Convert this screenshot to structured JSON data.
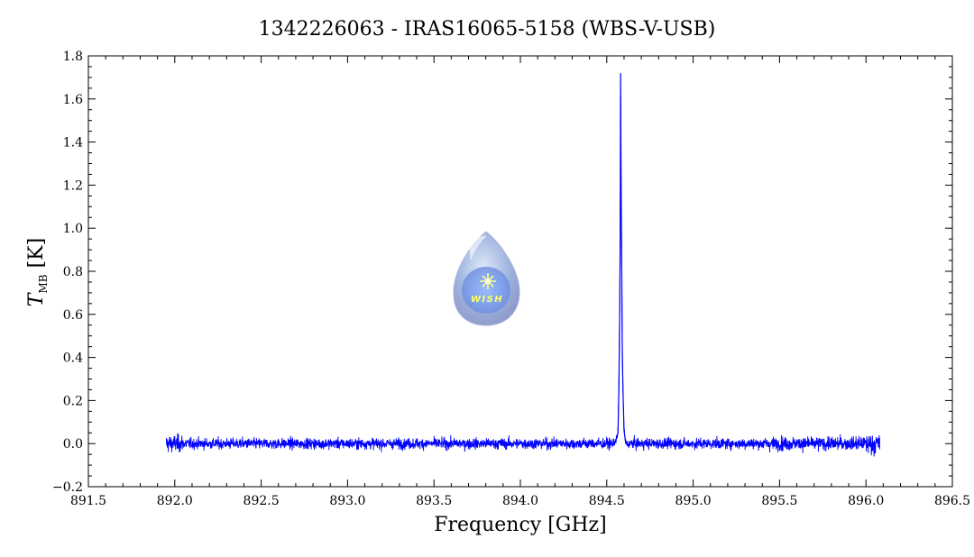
{
  "chart_data": {
    "type": "line",
    "title": "1342226063 - IRAS16065-5158 (WBS-V-USB)",
    "xlabel": "Frequency [GHz]",
    "ylabel": {
      "main": "T",
      "sub": "MB",
      "unit": "[K]"
    },
    "xlim": [
      891.5,
      896.5
    ],
    "ylim": [
      -0.2,
      1.8
    ],
    "x_ticks": [
      "891.5",
      "892.0",
      "892.5",
      "893.0",
      "893.5",
      "894.0",
      "894.5",
      "895.0",
      "895.5",
      "896.0",
      "896.5"
    ],
    "y_ticks": [
      "-0.2",
      "0.0",
      "0.2",
      "0.4",
      "0.6",
      "0.8",
      "1.0",
      "1.2",
      "1.4",
      "1.6",
      "1.8"
    ],
    "grid": false,
    "line_color": "#0000ff",
    "series": [
      {
        "x_range": [
          891.95,
          896.08
        ],
        "baseline": 0.0,
        "noise_rms": 0.025,
        "points": [
          {
            "x": 894.54,
            "y": 0.0
          },
          {
            "x": 894.555,
            "y": 0.02
          },
          {
            "x": 894.565,
            "y": 0.05
          },
          {
            "x": 894.57,
            "y": 0.25
          },
          {
            "x": 894.575,
            "y": 0.62
          },
          {
            "x": 894.578,
            "y": 1.0
          },
          {
            "x": 894.58,
            "y": 1.72
          },
          {
            "x": 894.583,
            "y": 1.2
          },
          {
            "x": 894.587,
            "y": 0.78
          },
          {
            "x": 894.59,
            "y": 0.42
          },
          {
            "x": 894.594,
            "y": 0.24
          },
          {
            "x": 894.6,
            "y": 0.06
          },
          {
            "x": 894.61,
            "y": 0.0
          }
        ]
      }
    ]
  },
  "logo": {
    "text": "WISH",
    "color": "#ffff66"
  }
}
